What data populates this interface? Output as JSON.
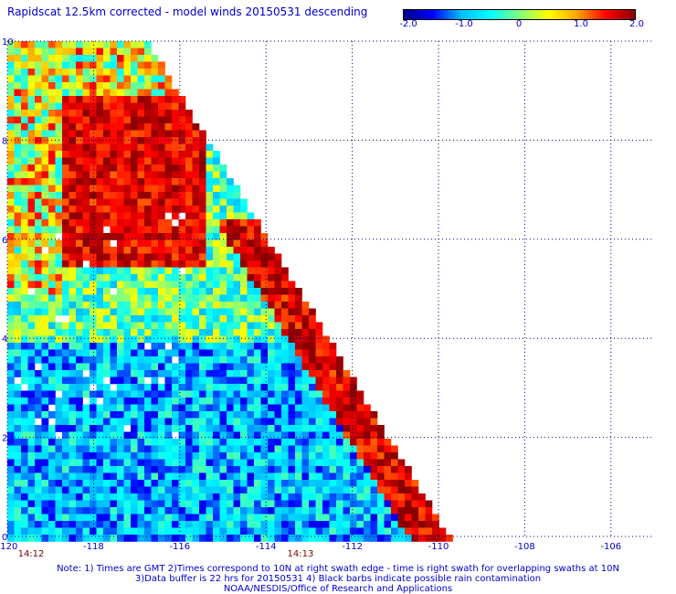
{
  "title": "Rapidscat 12.5km corrected - model winds 20150531 descending",
  "colorbar": {
    "ticks": [
      "-2.0",
      "-1.0",
      "0",
      "1.0",
      "2.0"
    ],
    "stops": [
      "#00008b",
      "#0000ff",
      "#00bfff",
      "#00ffff",
      "#7fff7f",
      "#ffff00",
      "#ffa500",
      "#ff0000",
      "#8b0000"
    ],
    "range": [
      -2.0,
      2.0
    ]
  },
  "axes": {
    "x_ticks": [
      "-120",
      "-118",
      "-116",
      "-114",
      "-112",
      "-110",
      "-108",
      "-106"
    ],
    "y_ticks": [
      "0",
      "2",
      "4",
      "6",
      "8",
      "10"
    ],
    "xlim": [
      -120,
      -105
    ],
    "ylim": [
      0,
      10
    ],
    "grid": "dotted"
  },
  "times": [
    "14:12",
    "14:13"
  ],
  "notes": [
    "Note: 1) Times are GMT 2)Times correspond to 10N at right swath edge - time is right swath for overlapping swaths at 10N",
    "3)Data buffer is 22 hrs for 20150531 4) Black barbs indicate possible rain contamination",
    "NOAA/NESDIS/Office of Research and Applications"
  ],
  "colors": {
    "label": "#0000cc",
    "time": "#800000",
    "grid": "#000080",
    "missing": "#ffffff"
  }
}
